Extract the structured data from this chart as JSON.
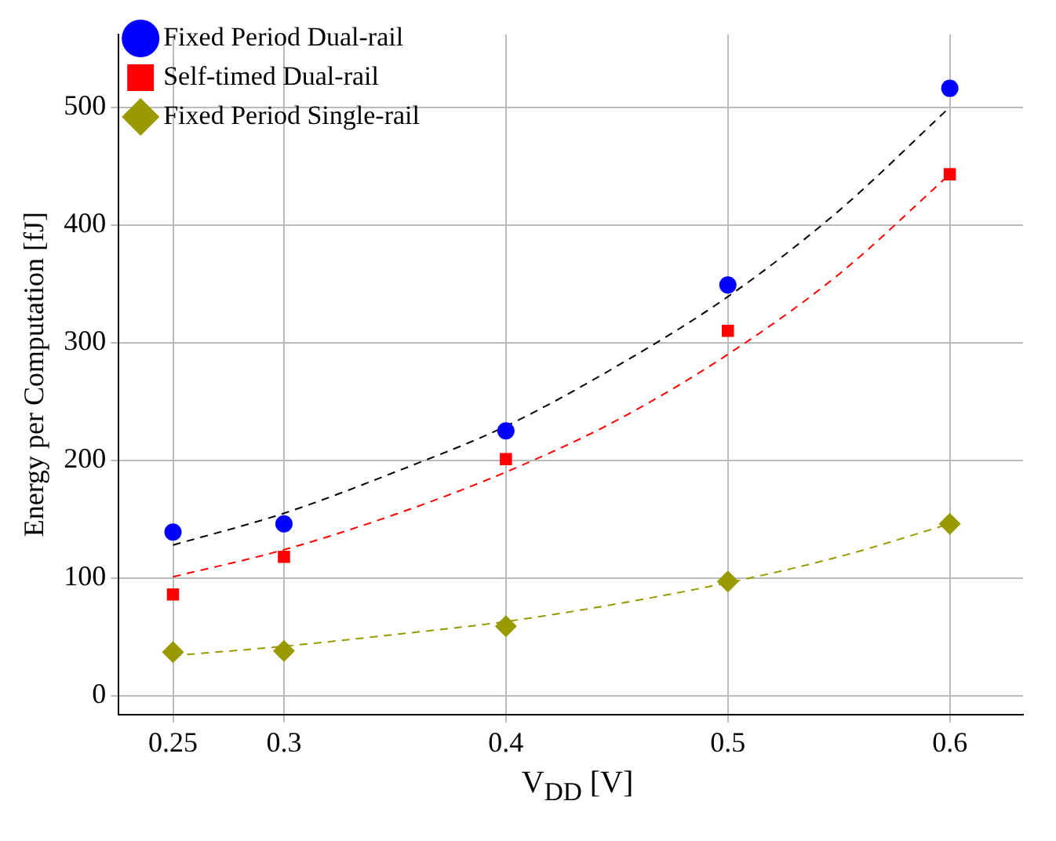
{
  "chart_data": {
    "type": "scatter",
    "xlabel": "V$_{DD}$ [V]",
    "ylabel": "Energy per Computation [fJ]",
    "xlim": [
      0.2255,
      0.633
    ],
    "xticks": [
      0.25,
      0.3,
      0.4,
      0.5,
      0.6
    ],
    "ylim": [
      -16,
      562
    ],
    "yticks": [
      0,
      100,
      200,
      300,
      400,
      500
    ],
    "grid": true,
    "legend": "top left",
    "series": [
      {
        "name": "Fixed Period Dual-rail",
        "type": "scatter",
        "marker": "circle",
        "color": "#0000ff",
        "x": [
          0.25,
          0.3,
          0.4,
          0.5,
          0.6
        ],
        "values": [
          139,
          146,
          225,
          349,
          516
        ]
      },
      {
        "name": "Self-timed Dual-rail",
        "type": "scatter",
        "marker": "square",
        "color": "#ff0000",
        "x": [
          0.25,
          0.3,
          0.4,
          0.5,
          0.6
        ],
        "values": [
          86,
          118,
          201,
          310,
          443
        ]
      },
      {
        "name": "Fixed Period Single-rail",
        "type": "scatter",
        "marker": "diamond",
        "color": "#999900",
        "x": [
          0.25,
          0.3,
          0.4,
          0.5,
          0.6
        ],
        "values": [
          37,
          38,
          59,
          97,
          146
        ]
      },
      {
        "type": "line",
        "marker": "none",
        "line_style": "dashed",
        "color": "#000000",
        "x": [
          0.25,
          0.3,
          0.35,
          0.4,
          0.45,
          0.5,
          0.55,
          0.6
        ],
        "values": [
          128,
          155,
          190,
          229,
          280,
          339,
          412,
          500
        ]
      },
      {
        "type": "line",
        "marker": "none",
        "line_style": "dashed",
        "color": "#ff0000",
        "x": [
          0.25,
          0.3,
          0.35,
          0.4,
          0.45,
          0.5,
          0.55,
          0.6
        ],
        "values": [
          101,
          124,
          154,
          190,
          234,
          290,
          358,
          443
        ]
      },
      {
        "type": "line",
        "marker": "none",
        "line_style": "dashed",
        "color": "#999900",
        "x": [
          0.25,
          0.3,
          0.35,
          0.4,
          0.45,
          0.5,
          0.55,
          0.6
        ],
        "values": [
          34,
          42,
          52,
          63,
          78,
          96,
          118,
          146
        ]
      }
    ]
  }
}
